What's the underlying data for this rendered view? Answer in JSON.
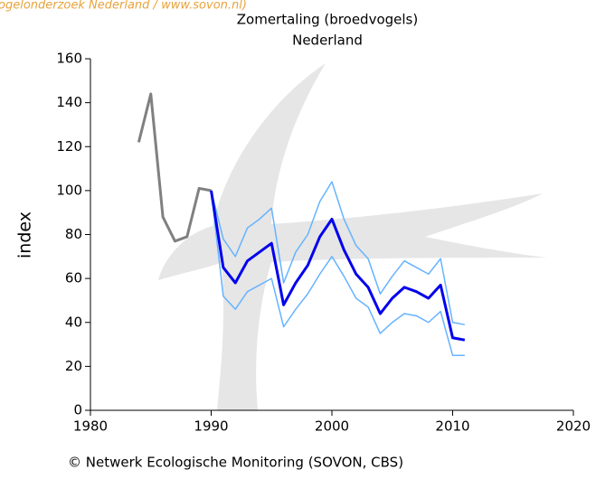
{
  "source_note": "ogelonderzoek Nederland / www.sovon.nl)",
  "chart_data": {
    "type": "line",
    "title": "Zomertaling (broedvogels)",
    "subtitle": "Nederland",
    "y_label": "index",
    "footer": "© Netwerk Ecologische Monitoring (SOVON, CBS)",
    "x": [
      1984,
      1985,
      1986,
      1987,
      1988,
      1989,
      1990,
      1991,
      1992,
      1993,
      1994,
      1995,
      1996,
      1997,
      1998,
      1999,
      2000,
      2001,
      2002,
      2003,
      2004,
      2005,
      2006,
      2007,
      2008,
      2009,
      2010,
      2011
    ],
    "series": [
      {
        "color": "#808080",
        "width": 3,
        "values": [
          122,
          144,
          88,
          77,
          79,
          101,
          100,
          null,
          null,
          null,
          null,
          null,
          null,
          null,
          null,
          null,
          null,
          null,
          null,
          null,
          null,
          null,
          null,
          null,
          null,
          null,
          null,
          null
        ]
      },
      {
        "color": "#66b3ff",
        "width": 1.5,
        "values": [
          null,
          null,
          null,
          null,
          null,
          null,
          100,
          78,
          70,
          83,
          87,
          92,
          58,
          72,
          80,
          95,
          104,
          87,
          75,
          69,
          53,
          61,
          68,
          65,
          62,
          69,
          40,
          39
        ]
      },
      {
        "color": "#66b3ff",
        "width": 1.5,
        "values": [
          null,
          null,
          null,
          null,
          null,
          null,
          100,
          52,
          46,
          54,
          57,
          60,
          38,
          46,
          53,
          62,
          70,
          61,
          51,
          47,
          35,
          40,
          44,
          43,
          40,
          45,
          25,
          25
        ]
      },
      {
        "color": "#0000ee",
        "width": 3,
        "values": [
          null,
          null,
          null,
          null,
          null,
          null,
          100,
          65,
          58,
          68,
          72,
          76,
          48,
          58,
          66,
          79,
          87,
          73,
          62,
          56,
          44,
          51,
          56,
          54,
          51,
          57,
          33,
          32
        ]
      }
    ],
    "xlim": [
      1980,
      2020
    ],
    "xticks": [
      1980,
      1990,
      2000,
      2010,
      2020
    ],
    "ylim": [
      0,
      160
    ],
    "yticks": [
      0,
      20,
      40,
      60,
      80,
      100,
      120,
      140,
      160
    ]
  }
}
